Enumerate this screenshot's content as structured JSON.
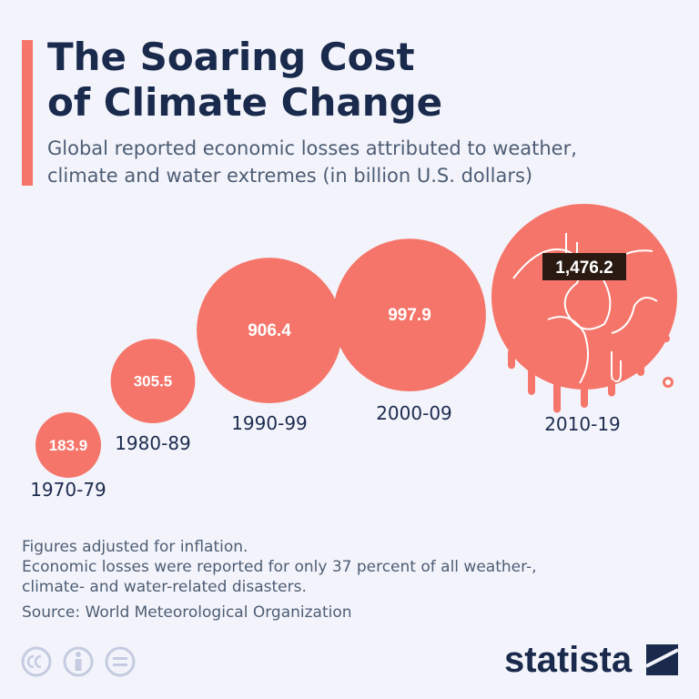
{
  "header": {
    "title_line1": "The Soaring Cost",
    "title_line2": "of Climate Change",
    "subtitle_line1": "Global reported economic losses attributed to weather,",
    "subtitle_line2": "climate and water extremes (in billion U.S. dollars)"
  },
  "chart_data": {
    "type": "bubble",
    "title": "The Soaring Cost of Climate Change",
    "subtitle": "Global reported economic losses attributed to weather, climate and water extremes (in billion U.S. dollars)",
    "categories": [
      "1970-79",
      "1980-89",
      "1990-99",
      "2000-09",
      "2010-19"
    ],
    "values": [
      183.9,
      305.5,
      906.4,
      997.9,
      1476.2
    ],
    "value_labels": [
      "183.9",
      "305.5",
      "906.4",
      "997.9",
      "1,476.2"
    ],
    "highlight_index": 4
  },
  "footer": {
    "note1": "Figures adjusted for inflation.",
    "note2_line1": "Economic losses were reported for only 37 percent of all weather-,",
    "note2_line2": "climate- and water-related disasters.",
    "source": "Source: World Meteorological Organization"
  },
  "license_icons": [
    "creative-commons-icon",
    "attribution-icon",
    "no-derivatives-icon"
  ],
  "brand": {
    "name": "statista"
  },
  "colors": {
    "accent": "#f5756a",
    "title": "#1a2a4c",
    "text": "#4d5d74",
    "label_box": "#2a1a12",
    "background": "#f3f4fb"
  }
}
